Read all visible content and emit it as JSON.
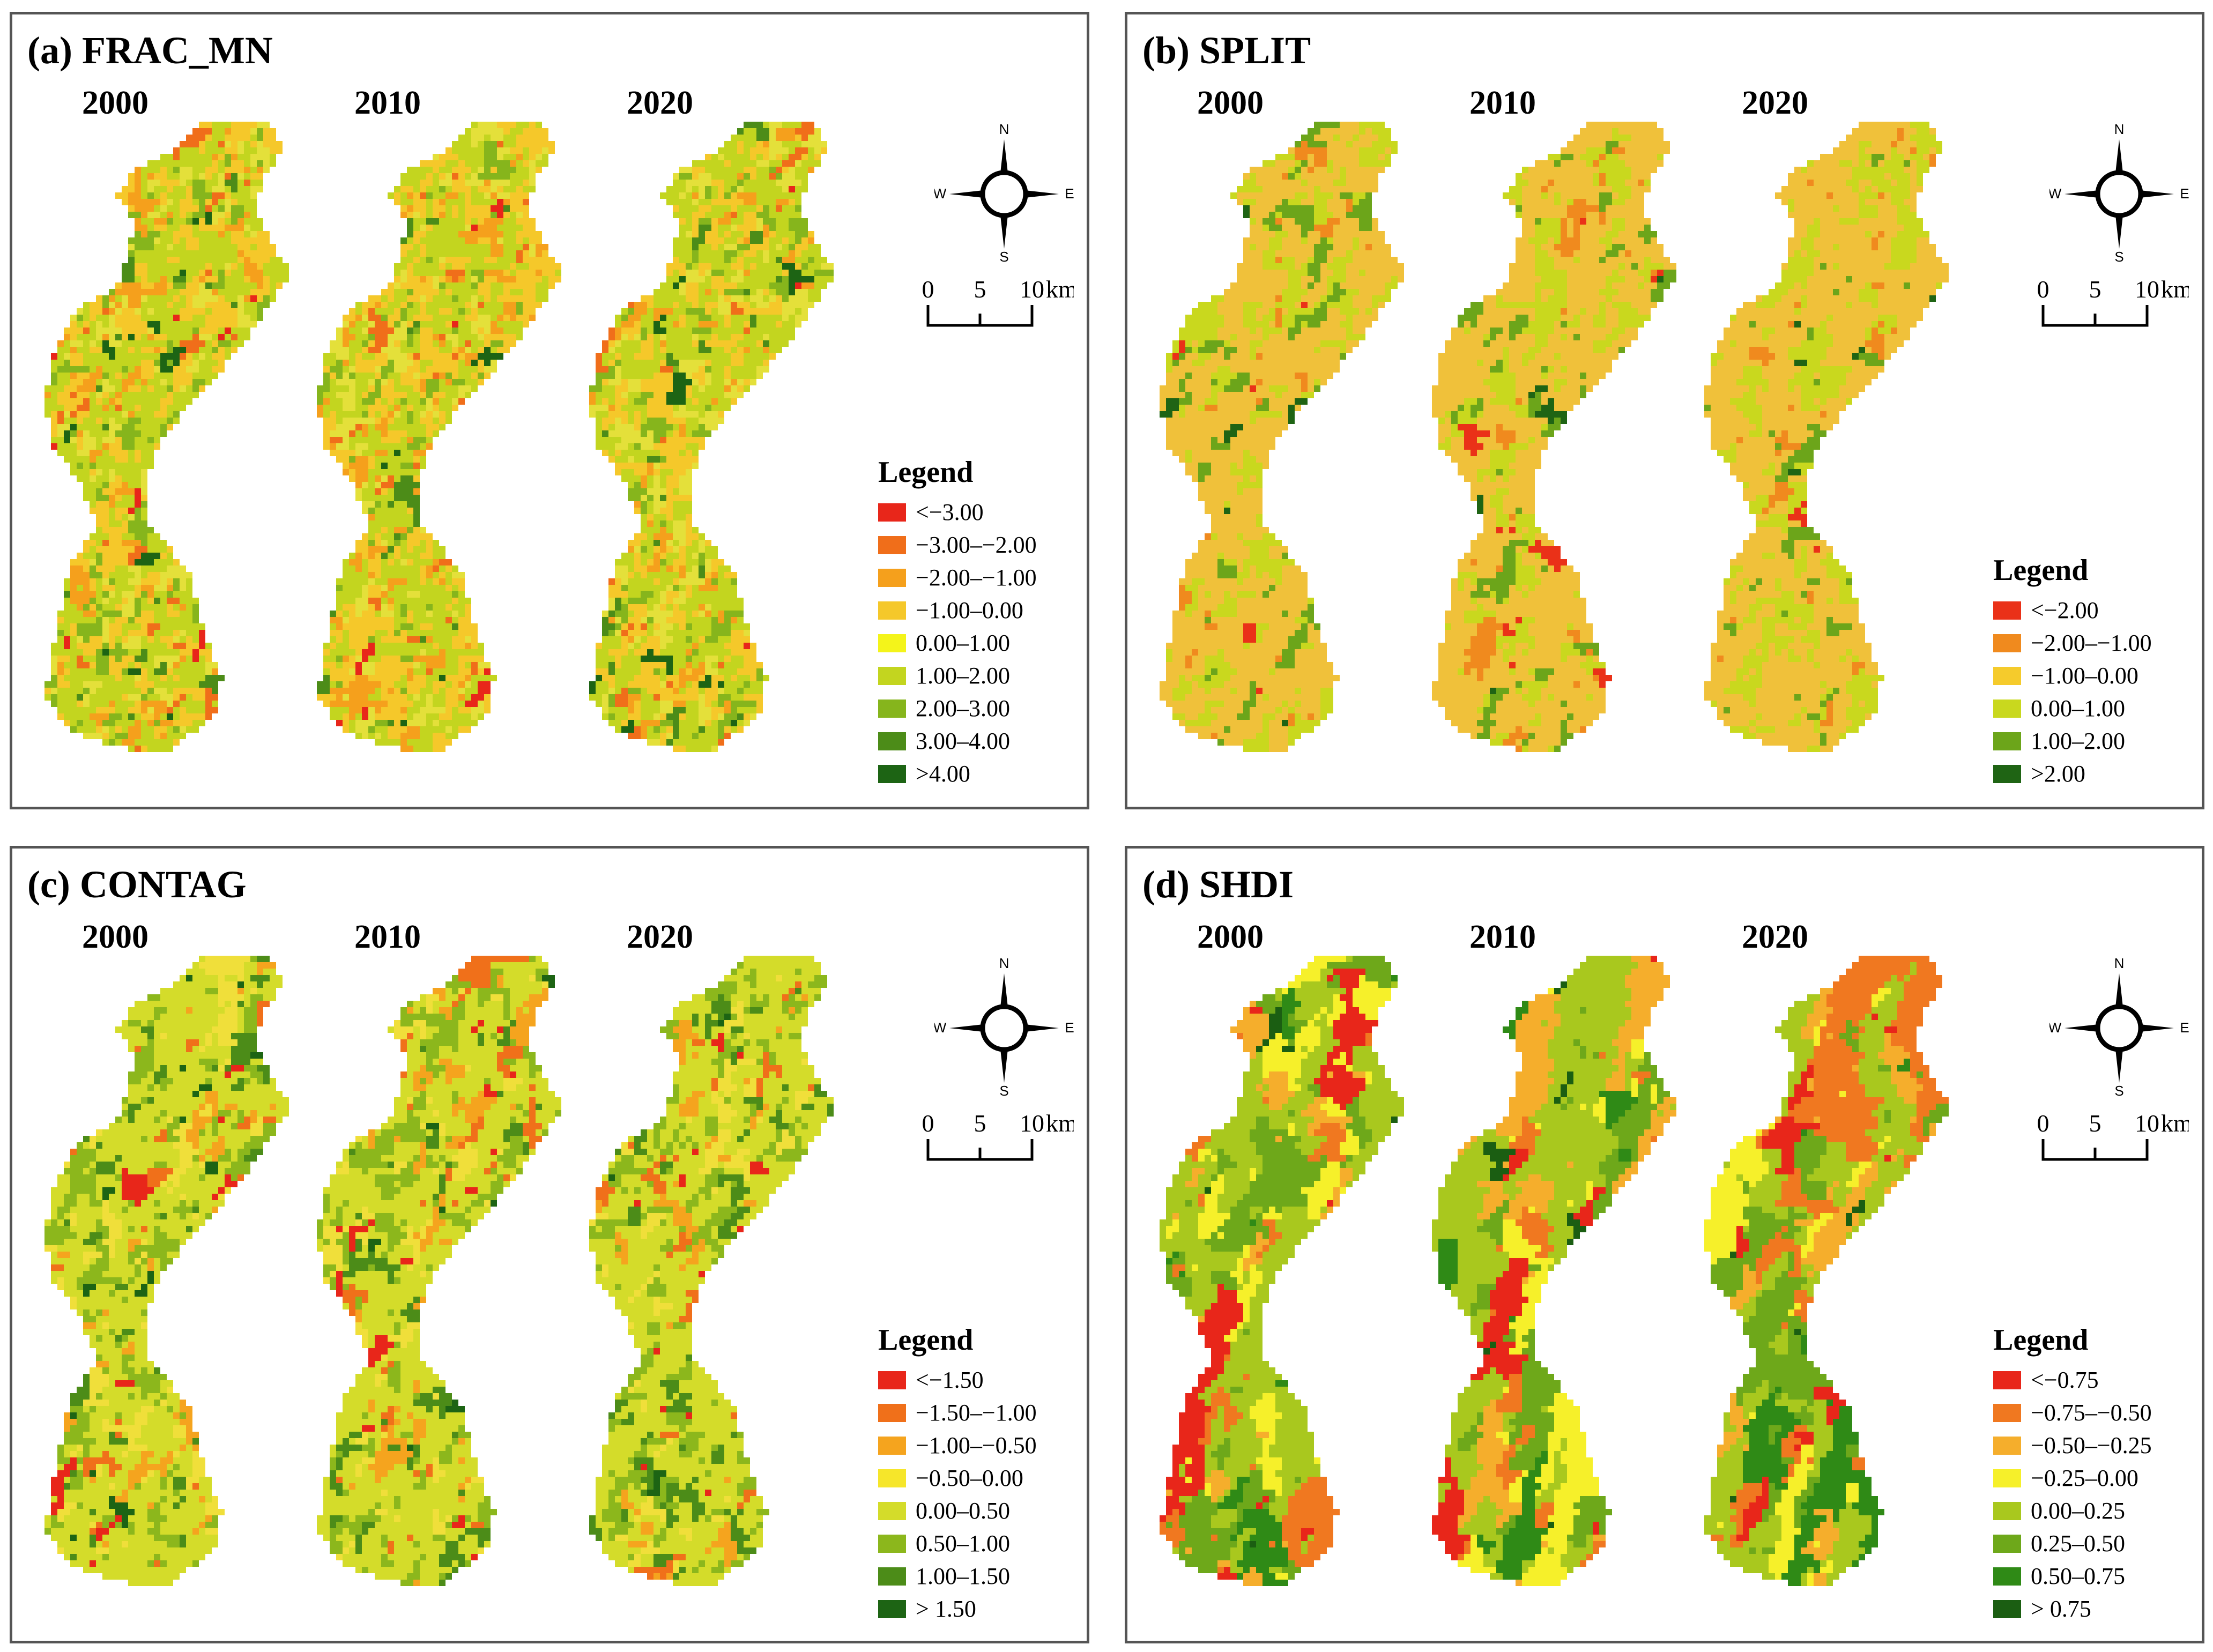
{
  "panels": [
    {
      "title": "(a) FRAC_MN",
      "years": [
        "2000",
        "2010",
        "2020"
      ],
      "legend": {
        "title": "Legend",
        "items": [
          {
            "label": "<−3.00",
            "color": "#e8261a"
          },
          {
            "label": "−3.00–−2.00",
            "color": "#f06e1a"
          },
          {
            "label": "−2.00–−1.00",
            "color": "#f5a01c"
          },
          {
            "label": "−1.00–0.00",
            "color": "#f5c82a"
          },
          {
            "label": "0.00–1.00",
            "color": "#f4f41a"
          },
          {
            "label": "1.00–2.00",
            "color": "#c3d51f"
          },
          {
            "label": "2.00–3.00",
            "color": "#86b51c"
          },
          {
            "label": "3.00–4.00",
            "color": "#4c8c18"
          },
          {
            "label": ">4.00",
            "color": "#1d6414"
          }
        ]
      },
      "palette": [
        "#e8261a",
        "#f06e1a",
        "#f5a01c",
        "#f5c82a",
        "#e4e03a",
        "#c3d51f",
        "#86b51c",
        "#4c8c18",
        "#1d6414"
      ],
      "weights": [
        0.01,
        0.03,
        0.08,
        0.26,
        0.12,
        0.4,
        0.07,
        0.02,
        0.01
      ],
      "smooth": 0.6
    },
    {
      "title": "(b) SPLIT",
      "years": [
        "2000",
        "2010",
        "2020"
      ],
      "legend": {
        "title": "Legend",
        "items": [
          {
            "label": "<−2.00",
            "color": "#ea3118"
          },
          {
            "label": "−2.00–−1.00",
            "color": "#f08a1e"
          },
          {
            "label": "−1.00–0.00",
            "color": "#f5cb2c"
          },
          {
            "label": "0.00–1.00",
            "color": "#c9d81e"
          },
          {
            "label": "1.00–2.00",
            "color": "#6ca51a"
          },
          {
            "label": ">2.00",
            "color": "#1f6414"
          }
        ]
      },
      "palette": [
        "#ea3118",
        "#f08a1e",
        "#f0c13a",
        "#c9d81e",
        "#6ca51a",
        "#1f6414"
      ],
      "weights": [
        0.01,
        0.05,
        0.64,
        0.22,
        0.07,
        0.01
      ],
      "smooth": 0.75
    },
    {
      "title": "(c) CONTAG",
      "years": [
        "2000",
        "2010",
        "2020"
      ],
      "legend": {
        "title": "Legend",
        "items": [
          {
            "label": "<−1.50",
            "color": "#e8261a"
          },
          {
            "label": "−1.50–−1.00",
            "color": "#f0701a"
          },
          {
            "label": "−1.00–−0.50",
            "color": "#f5a41e"
          },
          {
            "label": "−0.50–0.00",
            "color": "#f6e62a"
          },
          {
            "label": "0.00–0.50",
            "color": "#d4dc2a"
          },
          {
            "label": "0.50–1.00",
            "color": "#8cb71c"
          },
          {
            "label": "1.00–1.50",
            "color": "#4c8c18"
          },
          {
            "label": "> 1.50",
            "color": "#1d6414"
          }
        ]
      },
      "palette": [
        "#e8261a",
        "#f0701a",
        "#f5a41e",
        "#f0df3a",
        "#d4dc2a",
        "#8cb71c",
        "#4c8c18",
        "#1d6414"
      ],
      "weights": [
        0.02,
        0.03,
        0.05,
        0.08,
        0.56,
        0.18,
        0.07,
        0.01
      ],
      "smooth": 0.7
    },
    {
      "title": "(d) SHDI",
      "years": [
        "2000",
        "2010",
        "2020"
      ],
      "legend": {
        "title": "Legend",
        "items": [
          {
            "label": "<−0.75",
            "color": "#e8261a"
          },
          {
            "label": "−0.75–−0.50",
            "color": "#f07820"
          },
          {
            "label": "−0.50–−0.25",
            "color": "#f5ae2c"
          },
          {
            "label": "−0.25–0.00",
            "color": "#f6f02a"
          },
          {
            "label": "0.00–0.25",
            "color": "#a9c81e"
          },
          {
            "label": "0.25–0.50",
            "color": "#6ea81a"
          },
          {
            "label": "0.50–0.75",
            "color": "#2f8a16"
          },
          {
            "label": "> 0.75",
            "color": "#1b5e12"
          }
        ]
      },
      "palette": [
        "#e8261a",
        "#f07820",
        "#f5ae2c",
        "#f6f02a",
        "#a9c81e",
        "#6ea81a",
        "#2f8a16",
        "#1b5e12"
      ],
      "weights": [
        0.05,
        0.1,
        0.13,
        0.16,
        0.32,
        0.16,
        0.06,
        0.02
      ],
      "smooth": 0.92
    }
  ],
  "compass": {
    "n": "N",
    "s": "S",
    "e": "E",
    "w": "W"
  },
  "scalebar": {
    "ticks": [
      "0",
      "5",
      "10"
    ],
    "unit": "km"
  }
}
